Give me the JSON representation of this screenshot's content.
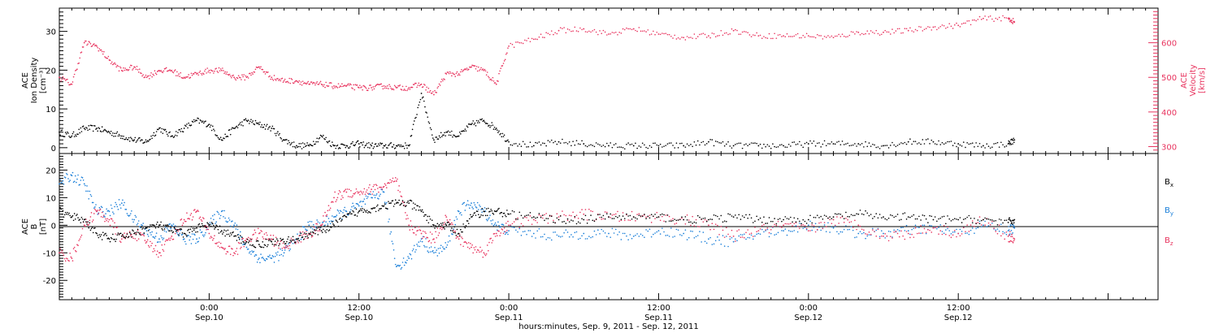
{
  "colors": {
    "density": "#000000",
    "velocity": "#e8335e",
    "bx": "#000000",
    "by": "#1a7fd9",
    "bz": "#e8335e",
    "axis": "#000000"
  },
  "top_panel": {
    "left_label": [
      "ACE",
      "Ion Density",
      "[cm⁻³]"
    ],
    "right_label": [
      "ACE",
      "Velocity",
      "[km/s]"
    ]
  },
  "bottom_panel": {
    "left_label": [
      "ACE",
      "B",
      "[nT]"
    ],
    "legend": [
      {
        "label": "B",
        "sub": "x"
      },
      {
        "label": "B",
        "sub": "y"
      },
      {
        "label": "B",
        "sub": "z"
      }
    ]
  },
  "x_ticks": [
    {
      "t": 24,
      "time": "0:00",
      "date": "Sep.10"
    },
    {
      "t": 36,
      "time": "12:00",
      "date": "Sep.10"
    },
    {
      "t": 48,
      "time": "0:00",
      "date": "Sep.11"
    },
    {
      "t": 60,
      "time": "12:00",
      "date": "Sep.11"
    },
    {
      "t": 72,
      "time": "0:00",
      "date": "Sep.12"
    },
    {
      "t": 84,
      "time": "12:00",
      "date": "Sep.12"
    }
  ],
  "x_title": "hours:minutes, Sep. 9, 2011 - Sep. 12, 2011",
  "chart_data": [
    {
      "type": "scatter",
      "title": "",
      "xlabel": "hours:minutes, Sep. 9, 2011 - Sep. 12, 2011",
      "x_units": "hours since Sep. 9, 2011 00:00",
      "xlim": [
        12,
        100
      ],
      "ylim": [
        -1.5,
        36
      ],
      "y2lim": [
        280,
        700
      ],
      "grid": false,
      "series": [
        {
          "name": "Ion Density",
          "axis": "left",
          "x": [
            12,
            13,
            14,
            15,
            16,
            17,
            18,
            19,
            20,
            21,
            22,
            23,
            24,
            25,
            26,
            27,
            28,
            29,
            30,
            31,
            32,
            33,
            34,
            35,
            36,
            37,
            38,
            39,
            40,
            41,
            42,
            43,
            44,
            45,
            46,
            47,
            48,
            50,
            52,
            54,
            56,
            58,
            60,
            62,
            64,
            66,
            68,
            70,
            72,
            74,
            76,
            78,
            80,
            82,
            84,
            86,
            88,
            88.5
          ],
          "y": [
            4,
            3,
            5,
            5,
            4,
            3,
            2,
            1.5,
            5,
            3,
            5,
            7,
            6,
            2,
            5,
            7,
            6,
            5,
            2,
            0.5,
            0.5,
            3,
            0.5,
            0.5,
            1,
            0.5,
            0.5,
            0.5,
            0.5,
            14,
            2,
            4,
            3,
            6,
            7,
            5,
            1.5,
            0.5,
            1.5,
            1,
            0.5,
            0.5,
            0.5,
            0.5,
            1.5,
            0.5,
            0.5,
            0.5,
            1,
            1,
            1,
            0.5,
            1.5,
            1.5,
            1,
            0.5,
            1,
            2
          ]
        },
        {
          "name": "Velocity",
          "axis": "right",
          "x": [
            12,
            13,
            14,
            15,
            16,
            17,
            18,
            19,
            20,
            21,
            22,
            23,
            24,
            25,
            26,
            27,
            28,
            29,
            30,
            31,
            32,
            33,
            34,
            35,
            36,
            37,
            38,
            39,
            40,
            41,
            42,
            43,
            44,
            45,
            46,
            47,
            48,
            50,
            52,
            54,
            56,
            58,
            60,
            62,
            64,
            66,
            68,
            70,
            72,
            74,
            76,
            78,
            80,
            82,
            84,
            86,
            88,
            88.5
          ],
          "y": [
            500,
            480,
            600,
            590,
            550,
            520,
            530,
            500,
            520,
            520,
            500,
            510,
            520,
            520,
            500,
            500,
            530,
            500,
            490,
            490,
            480,
            480,
            475,
            475,
            470,
            470,
            475,
            470,
            470,
            480,
            450,
            510,
            510,
            530,
            520,
            480,
            590,
            610,
            635,
            640,
            625,
            640,
            625,
            615,
            620,
            635,
            620,
            620,
            620,
            615,
            630,
            630,
            635,
            645,
            650,
            670,
            670,
            660
          ]
        }
      ]
    },
    {
      "type": "scatter",
      "title": "",
      "xlabel": "hours:minutes, Sep. 9, 2011 - Sep. 12, 2011",
      "ylabel": "ACE B [nT]",
      "x_units": "hours since Sep. 9, 2011 00:00",
      "xlim": [
        12,
        100
      ],
      "ylim": [
        -27,
        26
      ],
      "grid": false,
      "series": [
        {
          "name": "Bx",
          "x": [
            12,
            13,
            14,
            15,
            16,
            17,
            18,
            19,
            20,
            21,
            22,
            23,
            24,
            25,
            26,
            27,
            28,
            29,
            30,
            31,
            32,
            33,
            34,
            35,
            36,
            37,
            38,
            39,
            40,
            41,
            42,
            43,
            44,
            45,
            46,
            47,
            48,
            50,
            52,
            54,
            56,
            58,
            60,
            62,
            64,
            66,
            68,
            70,
            72,
            74,
            76,
            78,
            80,
            82,
            84,
            86,
            88,
            88.5
          ],
          "y": [
            5,
            3,
            2,
            -3,
            -5,
            -4,
            -3,
            -1,
            0,
            -2,
            -3,
            -1,
            0,
            -2,
            -4,
            -6,
            -7,
            -6,
            -6,
            -5,
            -3,
            -2,
            0,
            3,
            5,
            6,
            7,
            8,
            8,
            5,
            0,
            0,
            -3,
            3,
            5,
            5,
            4,
            3,
            2,
            2,
            3,
            3,
            3,
            2,
            2,
            3,
            2,
            2,
            2,
            3,
            4,
            3,
            3,
            2,
            2,
            2,
            1,
            2
          ]
        },
        {
          "name": "By",
          "x": [
            12,
            13,
            14,
            15,
            16,
            17,
            18,
            19,
            20,
            21,
            22,
            23,
            24,
            25,
            26,
            27,
            28,
            29,
            30,
            31,
            32,
            33,
            34,
            35,
            36,
            37,
            38,
            39,
            40,
            41,
            42,
            43,
            44,
            45,
            46,
            47,
            48,
            50,
            52,
            54,
            56,
            58,
            60,
            62,
            64,
            66,
            68,
            70,
            72,
            74,
            76,
            78,
            80,
            82,
            84,
            86,
            88,
            88.5
          ],
          "y": [
            15,
            18,
            15,
            5,
            5,
            8,
            2,
            -2,
            -5,
            0,
            -5,
            -5,
            0,
            5,
            0,
            -8,
            -12,
            -12,
            -10,
            -5,
            0,
            0,
            3,
            5,
            7,
            10,
            12,
            -15,
            -12,
            -5,
            -10,
            -8,
            5,
            8,
            5,
            0,
            -2,
            -3,
            -4,
            -3,
            -3,
            -4,
            -2,
            -3,
            -5,
            -6,
            -3,
            -2,
            0,
            -1,
            -3,
            -3,
            -2,
            -1,
            -3,
            0,
            -2,
            -1
          ]
        },
        {
          "name": "Bz",
          "x": [
            12,
            13,
            14,
            15,
            16,
            17,
            18,
            19,
            20,
            21,
            22,
            23,
            24,
            25,
            26,
            27,
            28,
            29,
            30,
            31,
            32,
            33,
            34,
            35,
            36,
            37,
            38,
            39,
            40,
            41,
            42,
            43,
            44,
            45,
            46,
            47,
            48,
            50,
            52,
            54,
            56,
            58,
            60,
            62,
            64,
            66,
            68,
            70,
            72,
            74,
            76,
            78,
            80,
            82,
            84,
            86,
            88,
            88.5
          ],
          "y": [
            -10,
            -12,
            0,
            5,
            2,
            -5,
            -3,
            -6,
            -10,
            -4,
            2,
            5,
            -3,
            -8,
            -10,
            -5,
            -3,
            -5,
            -8,
            -5,
            -3,
            0,
            10,
            12,
            12,
            13,
            14,
            16,
            0,
            -3,
            -5,
            3,
            -5,
            -8,
            -10,
            -3,
            0,
            2,
            3,
            4,
            3,
            3,
            3,
            2,
            0,
            -4,
            -2,
            0,
            -2,
            2,
            0,
            -4,
            -3,
            -1,
            -3,
            2,
            -4,
            -5
          ]
        }
      ]
    }
  ]
}
